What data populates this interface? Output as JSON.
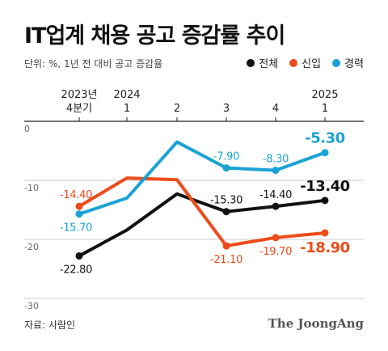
{
  "title": "IT업계 채용 공고 증감률 추이",
  "subtitle": "단위: %, 1년 전 대비 공고 증감율",
  "source": "자료: 사람인",
  "brand": "The JoongAng",
  "colors": {
    "total": "#111111",
    "new": "#ee4b1a",
    "experienced": "#1aa3d4"
  },
  "chart_data": {
    "type": "line",
    "categories": [
      "2023년\n4분기",
      "2024\n1",
      "2",
      "3",
      "4",
      "2025\n1"
    ],
    "ylim": [
      -30,
      0
    ],
    "yticks": [
      0,
      -10,
      -20,
      -30
    ],
    "ytick_labels": [
      "0",
      "-10",
      "-20",
      "-30"
    ],
    "grid": false,
    "legend": "top-right",
    "series": [
      {
        "name": "전체",
        "key": "total",
        "values": [
          -22.8,
          -18.4,
          -12.3,
          -15.3,
          -14.4,
          -13.4
        ],
        "labels": [
          "-22.80",
          "",
          "",
          "-15.30",
          "-14.40",
          "-13.40"
        ],
        "label_pos": [
          "below",
          "",
          "",
          "above",
          "above",
          "above-emph"
        ]
      },
      {
        "name": "신입",
        "key": "new",
        "values": [
          -14.4,
          -9.6,
          -9.9,
          -21.1,
          -19.7,
          -18.9
        ],
        "labels": [
          "-14.40",
          "",
          "",
          "-21.10",
          "-19.70",
          "-18.90"
        ],
        "label_pos": [
          "above",
          "",
          "",
          "below",
          "below",
          "below-emph"
        ]
      },
      {
        "name": "경력",
        "key": "experienced",
        "values": [
          -15.7,
          -13.0,
          -3.5,
          -7.9,
          -8.3,
          -5.3
        ],
        "labels": [
          "-15.70",
          "",
          "",
          "-7.90",
          "-8.30",
          "-5.30"
        ],
        "label_pos": [
          "below",
          "",
          "",
          "above",
          "above",
          "above-emph"
        ]
      }
    ]
  }
}
